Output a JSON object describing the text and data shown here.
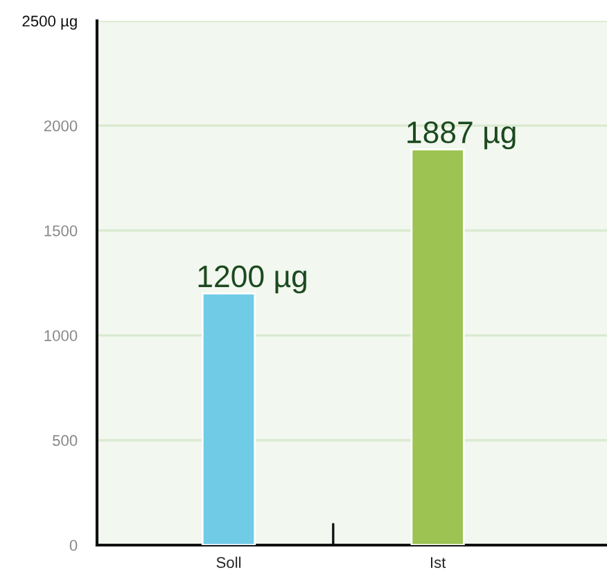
{
  "chart_data": {
    "type": "bar",
    "categories": [
      "Soll",
      "Ist"
    ],
    "values": [
      1200,
      1887
    ],
    "colors": [
      "#6fcbe6",
      "#9dc353"
    ],
    "value_labels": [
      "1200 µg",
      "1887 µg"
    ],
    "ylim": [
      0,
      2500
    ],
    "yticks": [
      0,
      500,
      1000,
      1500,
      2000,
      {
        "value": 2500,
        "label": "2500 µg"
      }
    ],
    "grid": "y"
  }
}
